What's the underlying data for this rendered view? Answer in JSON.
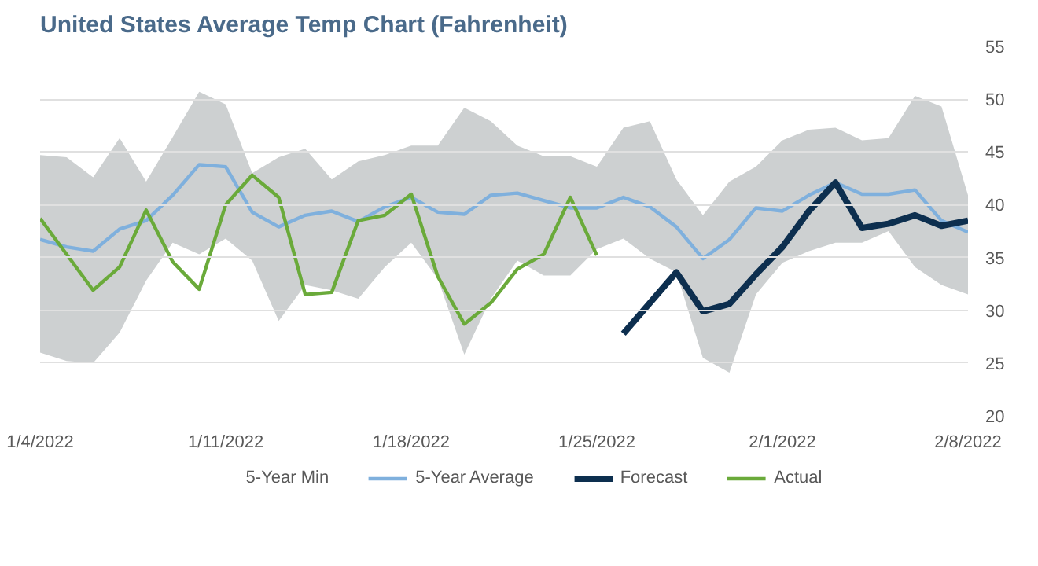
{
  "chart_data": {
    "type": "line",
    "title": "United States Average Temp Chart (Fahrenheit)",
    "x": [
      "2022-01-04",
      "2022-01-05",
      "2022-01-06",
      "2022-01-07",
      "2022-01-08",
      "2022-01-09",
      "2022-01-10",
      "2022-01-11",
      "2022-01-12",
      "2022-01-13",
      "2022-01-14",
      "2022-01-15",
      "2022-01-16",
      "2022-01-17",
      "2022-01-18",
      "2022-01-19",
      "2022-01-20",
      "2022-01-21",
      "2022-01-22",
      "2022-01-23",
      "2022-01-24",
      "2022-01-25",
      "2022-01-26",
      "2022-01-27",
      "2022-01-28",
      "2022-01-29",
      "2022-01-30",
      "2022-01-31",
      "2022-02-01",
      "2022-02-02",
      "2022-02-03",
      "2022-02-04",
      "2022-02-05",
      "2022-02-06",
      "2022-02-07",
      "2022-02-08"
    ],
    "series": [
      {
        "type": "area",
        "color": "#cdd0d1",
        "values": [
          44.7,
          44.5,
          42.6,
          46.3,
          42.2,
          46.4,
          50.7,
          49.5,
          43.0,
          44.5,
          45.3,
          42.4,
          44.1,
          44.7,
          45.6,
          45.6,
          49.2,
          47.9,
          45.6,
          44.6,
          44.6,
          43.6,
          47.3,
          47.9,
          42.4,
          39.0,
          42.2,
          43.6,
          46.1,
          47.1,
          47.3,
          46.1,
          46.3,
          50.3,
          49.3,
          40.9
        ]
      },
      {
        "type": "area",
        "name": "5-Year Min",
        "color": "#ffffff",
        "values": [
          26.0,
          25.2,
          25.0,
          27.9,
          32.8,
          36.4,
          35.3,
          36.8,
          34.7,
          29.0,
          32.4,
          31.9,
          31.1,
          34.1,
          36.4,
          33.0,
          25.8,
          31.1,
          34.7,
          33.3,
          33.3,
          35.8,
          36.8,
          34.9,
          33.6,
          25.5,
          24.1,
          31.5,
          34.5,
          35.6,
          36.4,
          36.4,
          37.5,
          34.1,
          32.4,
          31.5
        ]
      },
      {
        "name": "5-Year Average",
        "color": "#7fb0dd",
        "values": [
          36.7,
          36.0,
          35.6,
          37.7,
          38.5,
          40.9,
          43.8,
          43.6,
          39.3,
          37.9,
          39.0,
          39.4,
          38.4,
          39.8,
          40.7,
          39.3,
          39.1,
          40.9,
          41.1,
          40.4,
          39.7,
          39.7,
          40.7,
          39.8,
          37.9,
          34.9,
          36.7,
          39.7,
          39.4,
          40.9,
          42.1,
          41.0,
          41.0,
          41.4,
          38.5,
          37.4
        ]
      },
      {
        "name": "Forecast",
        "color": "#0d2f4f",
        "values": [
          null,
          null,
          null,
          null,
          null,
          null,
          null,
          null,
          null,
          null,
          null,
          null,
          null,
          null,
          null,
          null,
          null,
          null,
          null,
          null,
          null,
          null,
          27.8,
          30.7,
          33.6,
          29.9,
          30.6,
          33.4,
          36.0,
          39.4,
          42.1,
          37.8,
          38.2,
          39.0,
          38.0,
          38.5
        ]
      },
      {
        "name": "Actual",
        "color": "#6aaa3a",
        "values": [
          38.7,
          35.3,
          31.9,
          34.1,
          39.5,
          34.6,
          32.0,
          40.0,
          42.8,
          40.7,
          31.5,
          31.7,
          38.5,
          39.0,
          41.0,
          33.2,
          28.7,
          30.7,
          33.9,
          35.3,
          40.7,
          35.2,
          null,
          null,
          null,
          null,
          null,
          null,
          null,
          null,
          null,
          null,
          null,
          null,
          null,
          null
        ]
      }
    ],
    "xlim": [
      "2022-01-04",
      "2022-02-08"
    ],
    "xticks": [
      {
        "value": "2022-01-04",
        "label": "1/4/2022"
      },
      {
        "value": "2022-01-11",
        "label": "1/11/2022"
      },
      {
        "value": "2022-01-18",
        "label": "1/18/2022"
      },
      {
        "value": "2022-01-25",
        "label": "1/25/2022"
      },
      {
        "value": "2022-02-01",
        "label": "2/1/2022"
      },
      {
        "value": "2022-02-08",
        "label": "2/8/2022"
      }
    ],
    "ylim": [
      20,
      55
    ],
    "yticks": [
      20,
      25,
      30,
      35,
      40,
      45,
      50,
      55
    ],
    "grid": "y",
    "legend": "bottom",
    "line_style": "solid"
  }
}
